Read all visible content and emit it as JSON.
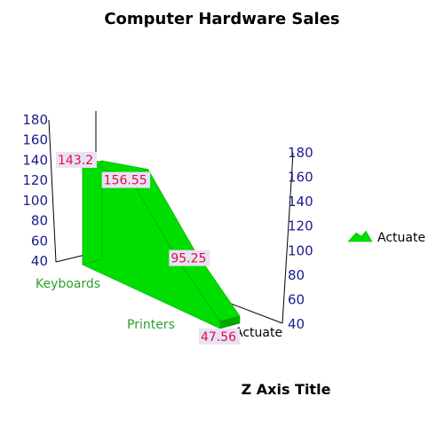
{
  "chart_data": {
    "type": "area",
    "title": "Computer Hardware Sales",
    "z_axis_title": "Z Axis Title",
    "categories": [
      "Keyboards",
      "",
      "Printers",
      ""
    ],
    "series": [
      {
        "name": "Actuate",
        "values": [
          143.2,
          156.55,
          95.25,
          47.56
        ]
      }
    ],
    "data_labels": [
      "143.2",
      "156.55",
      "95.25",
      "47.56"
    ],
    "ylim": [
      40,
      180
    ],
    "yticks": [
      "40",
      "60",
      "80",
      "100",
      "120",
      "140",
      "160",
      "180"
    ],
    "series_axis_label": "Actuate",
    "legend": {
      "position": "right",
      "entries": [
        "Actuate"
      ]
    },
    "colors": {
      "series": "#00dd00",
      "series_dark": "#00a800",
      "tick": "#1c1c8c",
      "category": "#2ca02c",
      "data_label": "#e0103a"
    }
  }
}
